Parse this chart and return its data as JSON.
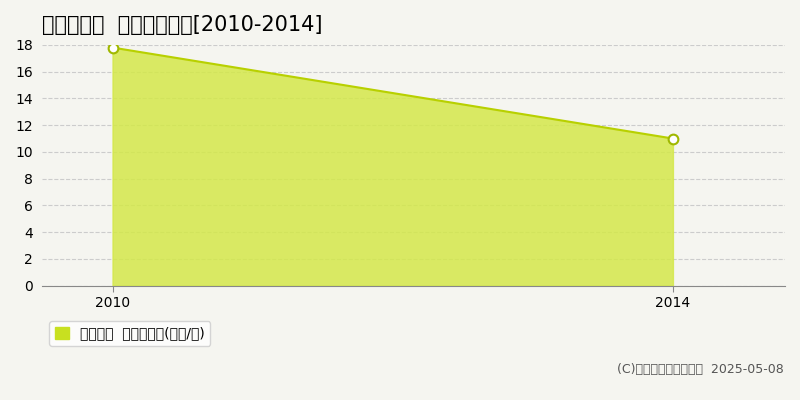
{
  "title": "中野市南宮  土地価格推移[2010-2014]",
  "years": [
    2010,
    2014
  ],
  "values": [
    17.8,
    11.0
  ],
  "xlim": [
    2009.5,
    2014.8
  ],
  "ylim": [
    0,
    18
  ],
  "yticks": [
    0,
    2,
    4,
    6,
    8,
    10,
    12,
    14,
    16,
    18
  ],
  "xticks": [
    2010,
    2014
  ],
  "fill_color": "#d4e84a",
  "fill_alpha": 0.85,
  "line_color": "#b8d000",
  "line_width": 1.5,
  "marker_color": "white",
  "marker_edge_color": "#a0b800",
  "marker_size": 7,
  "grid_color": "#cccccc",
  "grid_style": "--",
  "background_color": "#f5f5f0",
  "legend_label": "土地価格  平均坪単価(万円/坪)",
  "legend_color": "#c8e020",
  "copyright_text": "(C)土地価格ドットコム  2025-05-08",
  "title_fontsize": 15,
  "axis_fontsize": 10,
  "legend_fontsize": 10,
  "copyright_fontsize": 9
}
